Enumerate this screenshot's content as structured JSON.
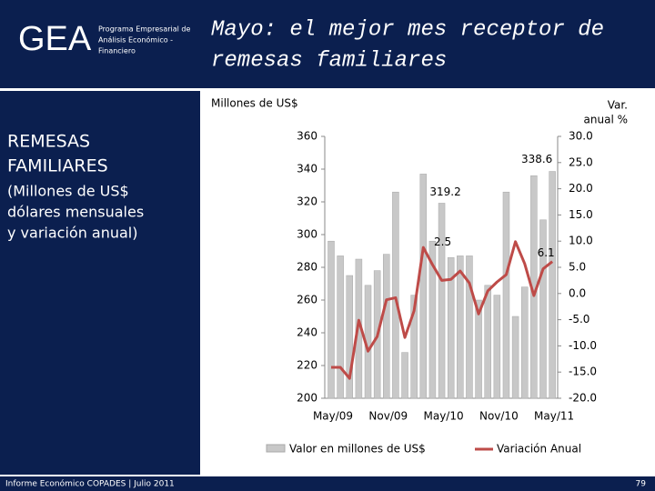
{
  "slide": {
    "logo": "GEA",
    "program": [
      "Programa Empresarial de",
      "Análisis Económico -",
      "Financiero"
    ],
    "title": [
      "Mayo: el mejor mes receptor de",
      "remesas familiares"
    ],
    "side_heading": [
      "REMESAS",
      "FAMILIARES"
    ],
    "side_text": [
      "(Millones de US$",
      "dólares mensuales",
      "y variación anual)"
    ],
    "footer": "Informe Económico COPADES  |  Julio 2011",
    "page": "79"
  },
  "chart_data": {
    "type": "bar",
    "ylabel": "Millones de US$",
    "y2label": [
      "Var.",
      "anual %"
    ],
    "categories": [
      "May/09",
      null,
      null,
      null,
      null,
      null,
      "Nov/09",
      null,
      null,
      null,
      null,
      null,
      "May/10",
      null,
      null,
      null,
      null,
      null,
      "Nov/10",
      null,
      null,
      null,
      null,
      null,
      "May/11"
    ],
    "series": [
      {
        "name": "Valor en millones de US$",
        "type": "bar",
        "color": "#c8c8c8",
        "axis": "y",
        "values": [
          296,
          287,
          275,
          285,
          269,
          278,
          288,
          326,
          228,
          263,
          337,
          296,
          319.2,
          286,
          287,
          287,
          260,
          269,
          263,
          326,
          250,
          268,
          336,
          309,
          338.6
        ]
      },
      {
        "name": "Variación Anual",
        "type": "line",
        "color": "#be4b48",
        "axis": "y2",
        "values": [
          -14.1,
          -14.1,
          -16.2,
          -5.1,
          -11,
          -8.2,
          -1.2,
          -0.8,
          -8.4,
          -3.3,
          8.8,
          5.5,
          2.5,
          2.7,
          4.3,
          2,
          -3.9,
          0.5,
          2.2,
          3.6,
          9.9,
          5.7,
          -0.4,
          4.7,
          6.1
        ]
      }
    ],
    "ylim": [
      200,
      360
    ],
    "yticks": [
      200,
      220,
      240,
      260,
      280,
      300,
      320,
      340,
      360
    ],
    "y2lim": [
      -20,
      30
    ],
    "y2ticks": [
      {
        "value": -20,
        "label": "-20.0"
      },
      {
        "value": -15,
        "label": "-15.0"
      },
      {
        "value": -10,
        "label": "-10.0"
      },
      {
        "value": -5,
        "label": "-5.0"
      },
      {
        "value": 0,
        "label": "0.0"
      },
      {
        "value": 5,
        "label": "5.0"
      },
      {
        "value": 10,
        "label": "10.0"
      },
      {
        "value": 15,
        "label": "15.0"
      },
      {
        "value": 20,
        "label": "20.0"
      },
      {
        "value": 25,
        "label": "25.0"
      },
      {
        "value": 30,
        "label": "30.0"
      }
    ],
    "legend": "bottom"
  }
}
